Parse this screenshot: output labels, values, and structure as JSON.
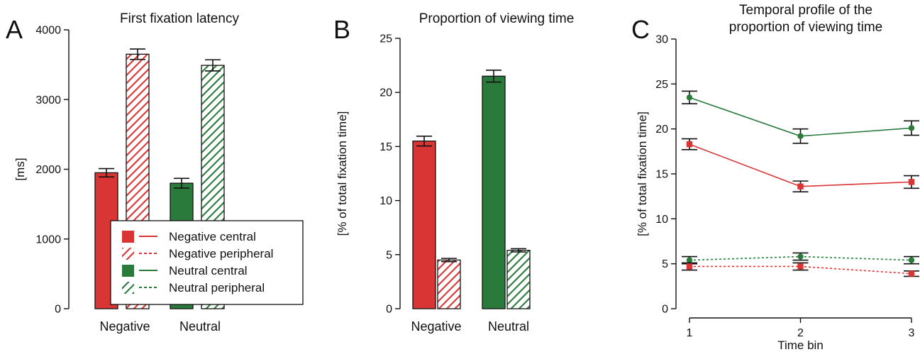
{
  "colors": {
    "negative": "#d93535",
    "neutral": "#2a7a3c",
    "black": "#111111"
  },
  "legend": {
    "items": [
      {
        "label": "Negative central",
        "group": "negative",
        "fill": "solid",
        "line": "solid"
      },
      {
        "label": "Negative peripheral",
        "group": "negative",
        "fill": "hatch",
        "line": "dotted"
      },
      {
        "label": "Neutral central",
        "group": "neutral",
        "fill": "solid",
        "line": "solid"
      },
      {
        "label": "Neutral peripheral",
        "group": "neutral",
        "fill": "hatch",
        "line": "dotted"
      }
    ]
  },
  "chart_data": [
    {
      "panel": "A",
      "type": "bar",
      "title": "First fixation latency",
      "ylabel": "[ms]",
      "xlabel": "",
      "ylim": [
        0,
        4000
      ],
      "yticks": [
        0,
        1000,
        2000,
        3000,
        4000
      ],
      "categories": [
        "Negative",
        "Neutral"
      ],
      "series": [
        {
          "name": "Negative central",
          "category": "Negative",
          "value": 1950,
          "error": 60,
          "group": "negative",
          "fill": "solid"
        },
        {
          "name": "Negative peripheral",
          "category": "Negative",
          "value": 3650,
          "error": 75,
          "group": "negative",
          "fill": "hatch"
        },
        {
          "name": "Neutral central",
          "category": "Neutral",
          "value": 1800,
          "error": 70,
          "group": "neutral",
          "fill": "solid"
        },
        {
          "name": "Neutral peripheral",
          "category": "Neutral",
          "value": 3490,
          "error": 80,
          "group": "neutral",
          "fill": "hatch"
        }
      ],
      "legend": "bottom-right"
    },
    {
      "panel": "B",
      "type": "bar",
      "title": "Proportion of viewing time",
      "ylabel": "[% of total fixation time]",
      "xlabel": "",
      "ylim": [
        0,
        25
      ],
      "yticks": [
        0,
        5,
        10,
        15,
        20,
        25
      ],
      "categories": [
        "Negative",
        "Neutral"
      ],
      "series": [
        {
          "name": "Negative central",
          "category": "Negative",
          "value": 15.5,
          "error": 0.45,
          "group": "negative",
          "fill": "solid"
        },
        {
          "name": "Negative peripheral",
          "category": "Negative",
          "value": 4.5,
          "error": 0.15,
          "group": "negative",
          "fill": "hatch"
        },
        {
          "name": "Neutral central",
          "category": "Neutral",
          "value": 21.5,
          "error": 0.55,
          "group": "neutral",
          "fill": "solid"
        },
        {
          "name": "Neutral peripheral",
          "category": "Neutral",
          "value": 5.4,
          "error": 0.15,
          "group": "neutral",
          "fill": "hatch"
        }
      ]
    },
    {
      "panel": "C",
      "type": "line",
      "title_lines": [
        "Temporal profile of the",
        "proportion of viewing time"
      ],
      "ylabel": "[% of total fixation time]",
      "xlabel": "Time bin",
      "x": [
        1,
        2,
        3
      ],
      "xlim": [
        1,
        3
      ],
      "ylim": [
        0,
        30
      ],
      "yticks": [
        0,
        5,
        10,
        15,
        20,
        25,
        30
      ],
      "series": [
        {
          "name": "Neutral central",
          "group": "neutral",
          "line": "solid",
          "marker": "circle",
          "values": [
            23.5,
            19.2,
            20.1
          ],
          "errors": [
            0.7,
            0.8,
            0.8
          ]
        },
        {
          "name": "Negative central",
          "group": "negative",
          "line": "solid",
          "marker": "square",
          "values": [
            18.3,
            13.6,
            14.1
          ],
          "errors": [
            0.6,
            0.6,
            0.7
          ]
        },
        {
          "name": "Neutral peripheral",
          "group": "neutral",
          "line": "dotted",
          "marker": "circle",
          "values": [
            5.4,
            5.8,
            5.4
          ],
          "errors": [
            0.4,
            0.4,
            0.4
          ]
        },
        {
          "name": "Negative peripheral",
          "group": "negative",
          "line": "dotted",
          "marker": "square",
          "values": [
            4.7,
            4.7,
            3.9
          ],
          "errors": [
            0.4,
            0.4,
            0.3
          ]
        }
      ]
    }
  ]
}
